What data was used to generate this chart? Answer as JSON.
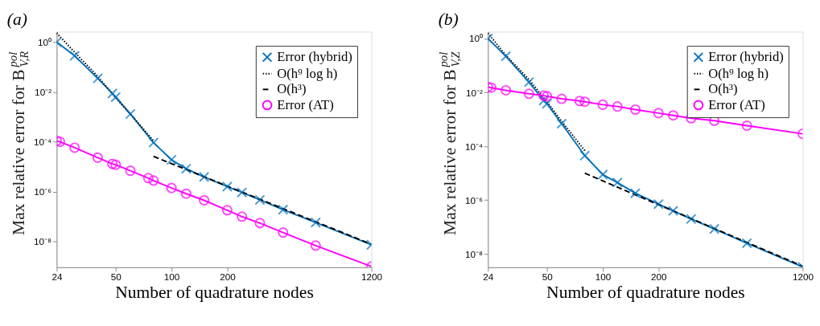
{
  "chart_data": [
    {
      "type": "line",
      "title": "(a)",
      "xlabel": "Number of quadrature nodes",
      "ylabel": "Max relative error for B$^{pol}$$_{V,R}$",
      "log": "xy",
      "grid": false,
      "legend": "top right",
      "xlim": [
        24,
        1200
      ],
      "xticks": [
        24,
        50,
        100,
        200,
        1200
      ],
      "ylim": [
        9.3e-10,
        2.6
      ],
      "yticks": [
        {
          "value": 1e-08,
          "label": "10⁻⁸"
        },
        {
          "value": 1e-06,
          "label": "10⁻⁶"
        },
        {
          "value": 0.0001,
          "label": "10⁻⁴"
        },
        {
          "value": 0.01,
          "label": "10⁻²"
        },
        {
          "value": 1,
          "label": "10⁰"
        }
      ],
      "series": [
        {
          "name": "Error (hybrid)",
          "color": "#0072bd",
          "marker": "cross",
          "line_style": "solid",
          "x": [
            24,
            30,
            40,
            48,
            50,
            60,
            80,
            100,
            120,
            150,
            200,
            240,
            300,
            400,
            600,
            1200
          ],
          "values": [
            1.0,
            0.28,
            0.035,
            0.0087,
            0.0062,
            0.0013,
            9.3e-05,
            1.9e-05,
            8.3e-06,
            3.9e-06,
            1.6e-06,
            9.3e-07,
            4.7e-07,
            1.9e-07,
            5.8e-08,
            7.4e-09
          ]
        },
        {
          "name": "O(h⁹ log h)",
          "color": "#000000",
          "marker": "none",
          "line_style": "dotted",
          "x": [
            24,
            30,
            40,
            50,
            60,
            80
          ],
          "values": [
            2.3,
            0.39,
            0.042,
            0.0058,
            0.0013,
            0.00011
          ]
        },
        {
          "name": "O(h³)",
          "color": "#000000",
          "marker": "none",
          "line_style": "dashed",
          "x": [
            80,
            1200
          ],
          "values": [
            2.6e-05,
            7.8e-09
          ]
        },
        {
          "name": "Error (AT)",
          "color": "#ff00ff",
          "marker": "circle",
          "line_style": "solid",
          "x": [
            24,
            25,
            30,
            40,
            48,
            50,
            60,
            75,
            80,
            100,
            120,
            150,
            200,
            240,
            300,
            400,
            600,
            1200
          ],
          "values": [
            0.00011,
            0.0001,
            5.8e-05,
            2.3e-05,
            1.3e-05,
            1.2e-05,
            6.9e-06,
            3.5e-06,
            2.8e-06,
            1.4e-06,
            8.3e-07,
            4.5e-07,
            1.8e-07,
            1e-07,
            5.5e-08,
            2.3e-08,
            6.9e-09,
            1e-09
          ]
        }
      ]
    },
    {
      "type": "line",
      "title": "(b)",
      "xlabel": "Number of quadrature nodes",
      "ylabel": "Max relative error for B$^{pol}$$_{V,Z}$",
      "log": "xy",
      "grid": false,
      "legend": "top right",
      "xlim": [
        24,
        1200
      ],
      "xticks": [
        24,
        50,
        100,
        200,
        1200
      ],
      "ylim": [
        3.2e-09,
        1.8
      ],
      "yticks": [
        {
          "value": 1e-08,
          "label": "10⁻⁸"
        },
        {
          "value": 1e-06,
          "label": "10⁻⁶"
        },
        {
          "value": 0.0001,
          "label": "10⁻⁴"
        },
        {
          "value": 0.01,
          "label": "10⁻²"
        },
        {
          "value": 1,
          "label": "10⁰"
        }
      ],
      "series": [
        {
          "name": "Error (hybrid)",
          "color": "#0072bd",
          "marker": "cross",
          "line_style": "solid",
          "x": [
            24,
            30,
            40,
            48,
            50,
            60,
            80,
            100,
            120,
            150,
            200,
            240,
            300,
            400,
            600,
            1200
          ],
          "values": [
            1.0,
            0.22,
            0.024,
            0.005,
            0.0038,
            0.00069,
            4.5e-05,
            8.9e-06,
            4.5e-06,
            1.8e-06,
            7.1e-07,
            4e-07,
            2e-07,
            8.5e-08,
            2.5e-08,
            3.3e-09
          ]
        },
        {
          "name": "O(h⁹ log h)",
          "color": "#000000",
          "marker": "none",
          "line_style": "dotted",
          "x": [
            24,
            30,
            40,
            50,
            60,
            80
          ],
          "values": [
            1.6,
            0.24,
            0.03,
            0.0045,
            0.00085,
            6.9e-05
          ]
        },
        {
          "name": "O(h³)",
          "color": "#000000",
          "marker": "none",
          "line_style": "dashed",
          "x": [
            80,
            1200
          ],
          "values": [
            1e-05,
            3.5e-09
          ]
        },
        {
          "name": "Error (AT)",
          "color": "#ff00ff",
          "marker": "circle",
          "line_style": "solid",
          "x": [
            24,
            25,
            30,
            40,
            48,
            50,
            60,
            75,
            80,
            100,
            120,
            150,
            200,
            240,
            300,
            400,
            600,
            1200
          ],
          "values": [
            0.016,
            0.015,
            0.012,
            0.0089,
            0.0076,
            0.0072,
            0.0058,
            0.0048,
            0.0045,
            0.0035,
            0.003,
            0.0023,
            0.0017,
            0.0014,
            0.0011,
            0.00089,
            0.00058,
            0.00029
          ]
        }
      ]
    }
  ]
}
